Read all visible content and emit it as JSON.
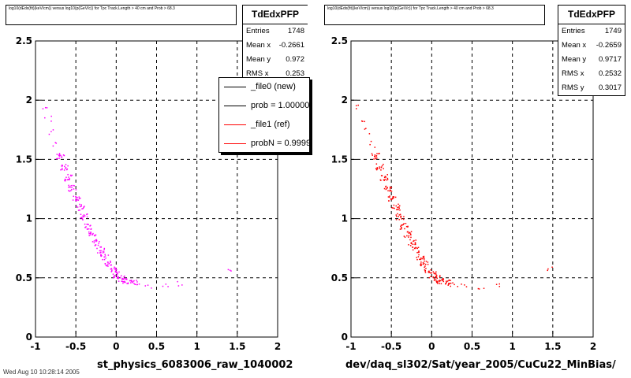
{
  "panels": [
    {
      "title": "log10(dEdx(fit)(keV/cm)) versus log10(p(GeV/c)) for Tpc Track.Length > 40 cm and Prob > 68.3",
      "stats": {
        "name": "TdEdxPFP",
        "rows": [
          {
            "label": "Entries",
            "value": "1748"
          },
          {
            "label": "Mean x",
            "value": "-0.2661"
          },
          {
            "label": "Mean y",
            "value": "0.972"
          },
          {
            "label": "RMS x",
            "value": "0.253"
          }
        ]
      },
      "legend": [
        {
          "label": "_file0 (new)",
          "color": "#000000"
        },
        {
          "label": "prob = 1.000000",
          "color": "#000000"
        },
        {
          "label": "_file1 (ref)",
          "color": "#ff0000"
        },
        {
          "label": "probN = 0.999900",
          "color": "#ff0000"
        }
      ],
      "xaxis_caption": "st_physics_6083006_raw_1040002",
      "marker_color": "#ff00ff"
    },
    {
      "title": "log10(dEdx(fit)(keV/cm)) versus log10(p(GeV/c)) for Tpc Track.Length > 40 cm and Prob > 68.3",
      "stats": {
        "name": "TdEdxPFP",
        "rows": [
          {
            "label": "Entries",
            "value": "1749"
          },
          {
            "label": "Mean x",
            "value": "-0.2659"
          },
          {
            "label": "Mean y",
            "value": "0.9717"
          },
          {
            "label": "RMS x",
            "value": "0.2532"
          },
          {
            "label": "RMS y",
            "value": "0.3017"
          }
        ]
      },
      "xaxis_caption": "dev/daq_sl302/Sat/year_2005/CuCu22_MinBias/",
      "marker_color": "#ff0000"
    }
  ],
  "footer_text": "Wed Aug 10 10:28:14 2005",
  "chart_data": [
    {
      "type": "scatter",
      "title": "",
      "xlabel": "",
      "ylabel": "",
      "xlim": [
        -1,
        2
      ],
      "ylim": [
        0,
        2.5
      ],
      "xticks": [
        "-1",
        "-0.5",
        "0",
        "0.5",
        "1",
        "1.5",
        "2"
      ],
      "yticks": [
        "0",
        "0.5",
        "1",
        "1.5",
        "2",
        "2.5"
      ],
      "grid": true,
      "series": [
        {
          "name": "_file0 (new)",
          "color": "#ff00ff",
          "points": [
            [
              -0.85,
              1.85
            ],
            [
              -0.8,
              1.74
            ],
            [
              -0.75,
              1.63
            ],
            [
              -0.7,
              1.53
            ],
            [
              -0.65,
              1.44
            ],
            [
              -0.6,
              1.35
            ],
            [
              -0.55,
              1.26
            ],
            [
              -0.5,
              1.18
            ],
            [
              -0.45,
              1.1
            ],
            [
              -0.4,
              1.02
            ],
            [
              -0.35,
              0.94
            ],
            [
              -0.3,
              0.87
            ],
            [
              -0.25,
              0.8
            ],
            [
              -0.2,
              0.74
            ],
            [
              -0.15,
              0.68
            ],
            [
              -0.1,
              0.62
            ],
            [
              -0.05,
              0.57
            ],
            [
              0.0,
              0.53
            ],
            [
              0.05,
              0.5
            ],
            [
              0.1,
              0.48
            ],
            [
              0.2,
              0.46
            ],
            [
              0.3,
              0.45
            ],
            [
              0.4,
              0.44
            ],
            [
              0.6,
              0.43
            ],
            [
              0.8,
              0.45
            ],
            [
              1.4,
              0.58
            ],
            [
              -0.9,
              1.95
            ]
          ]
        }
      ]
    },
    {
      "type": "scatter",
      "title": "",
      "xlabel": "",
      "ylabel": "",
      "xlim": [
        -1,
        2
      ],
      "ylim": [
        0,
        2.5
      ],
      "xticks": [
        "-1",
        "-0.5",
        "0",
        "0.5",
        "1",
        "1.5",
        "2"
      ],
      "yticks": [
        "0",
        "0.5",
        "1",
        "1.5",
        "2",
        "2.5"
      ],
      "grid": true,
      "series": [
        {
          "name": "_file1 (ref)",
          "color": "#ff0000",
          "points": [
            [
              -0.85,
              1.85
            ],
            [
              -0.8,
              1.74
            ],
            [
              -0.75,
              1.63
            ],
            [
              -0.7,
              1.53
            ],
            [
              -0.65,
              1.44
            ],
            [
              -0.6,
              1.35
            ],
            [
              -0.55,
              1.26
            ],
            [
              -0.5,
              1.18
            ],
            [
              -0.45,
              1.1
            ],
            [
              -0.4,
              1.02
            ],
            [
              -0.35,
              0.94
            ],
            [
              -0.3,
              0.87
            ],
            [
              -0.25,
              0.8
            ],
            [
              -0.2,
              0.74
            ],
            [
              -0.15,
              0.68
            ],
            [
              -0.1,
              0.62
            ],
            [
              -0.05,
              0.57
            ],
            [
              0.0,
              0.53
            ],
            [
              0.05,
              0.5
            ],
            [
              0.1,
              0.48
            ],
            [
              0.2,
              0.46
            ],
            [
              0.3,
              0.45
            ],
            [
              0.4,
              0.44
            ],
            [
              0.6,
              0.43
            ],
            [
              0.8,
              0.45
            ],
            [
              1.45,
              0.58
            ],
            [
              -0.9,
              1.95
            ]
          ]
        }
      ]
    }
  ]
}
